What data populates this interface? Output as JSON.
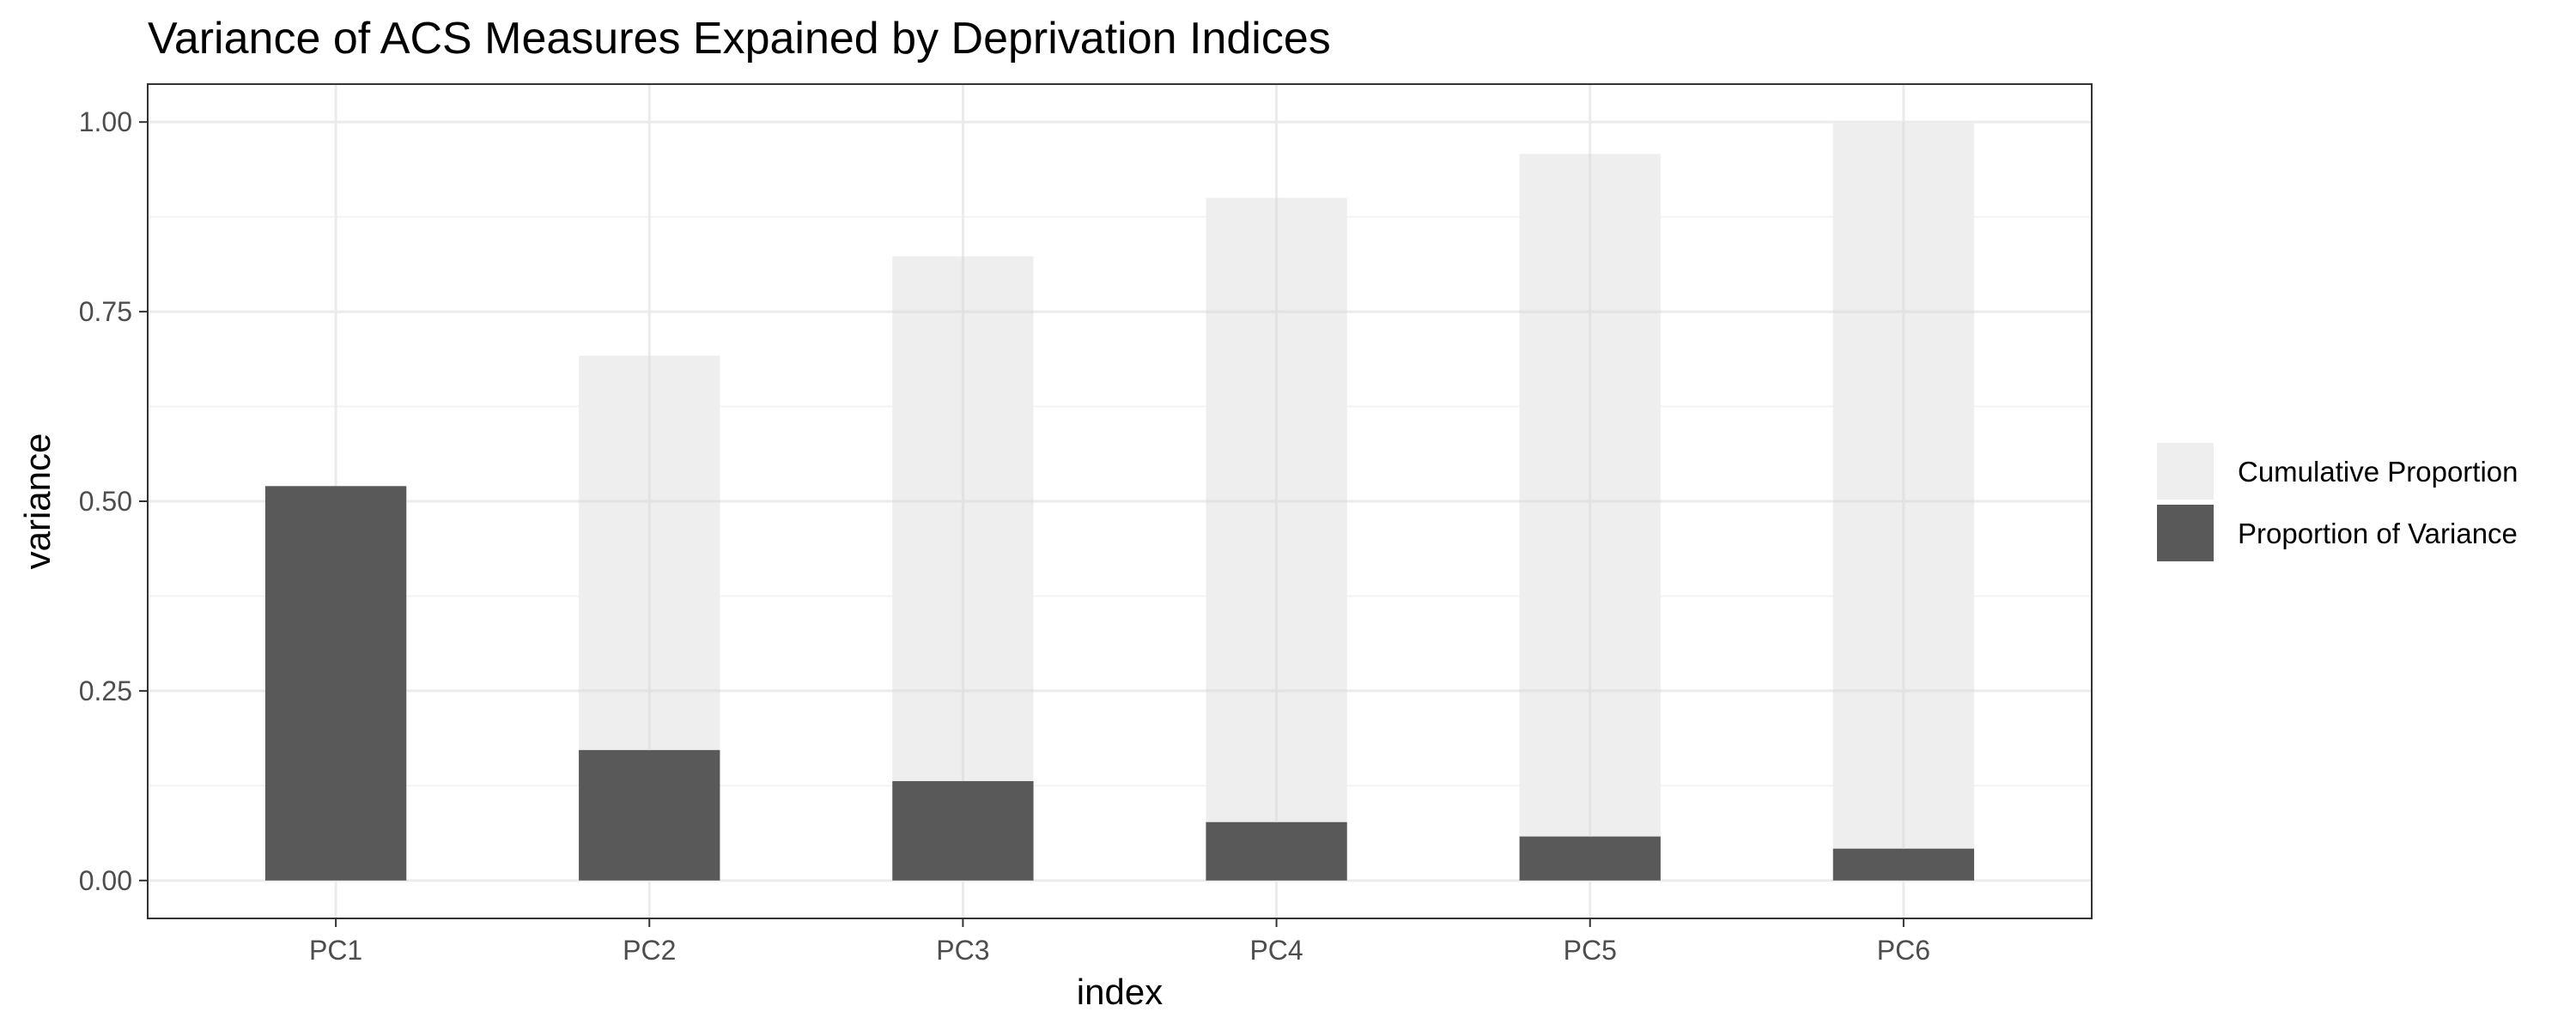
{
  "chart_data": {
    "type": "bar",
    "title": "Variance of ACS Measures Expained by Deprivation Indices",
    "xlabel": "index",
    "ylabel": "variance",
    "categories": [
      "PC1",
      "PC2",
      "PC3",
      "PC4",
      "PC5",
      "PC6"
    ],
    "series": [
      {
        "name": "Cumulative Proportion",
        "values": [
          0.52,
          0.692,
          0.823,
          0.9,
          0.958,
          1.0
        ],
        "color": "#eeeeee"
      },
      {
        "name": "Proportion of Variance",
        "values": [
          0.52,
          0.172,
          0.131,
          0.077,
          0.058,
          0.042
        ],
        "color": "#595959"
      }
    ],
    "ylim": [
      -0.05,
      1.05
    ],
    "yticks": [
      0.0,
      0.25,
      0.5,
      0.75,
      1.0
    ],
    "ytick_labels": [
      "0.00",
      "0.25",
      "0.50",
      "0.75",
      "1.00"
    ],
    "grid": true,
    "legend_position": "right"
  }
}
